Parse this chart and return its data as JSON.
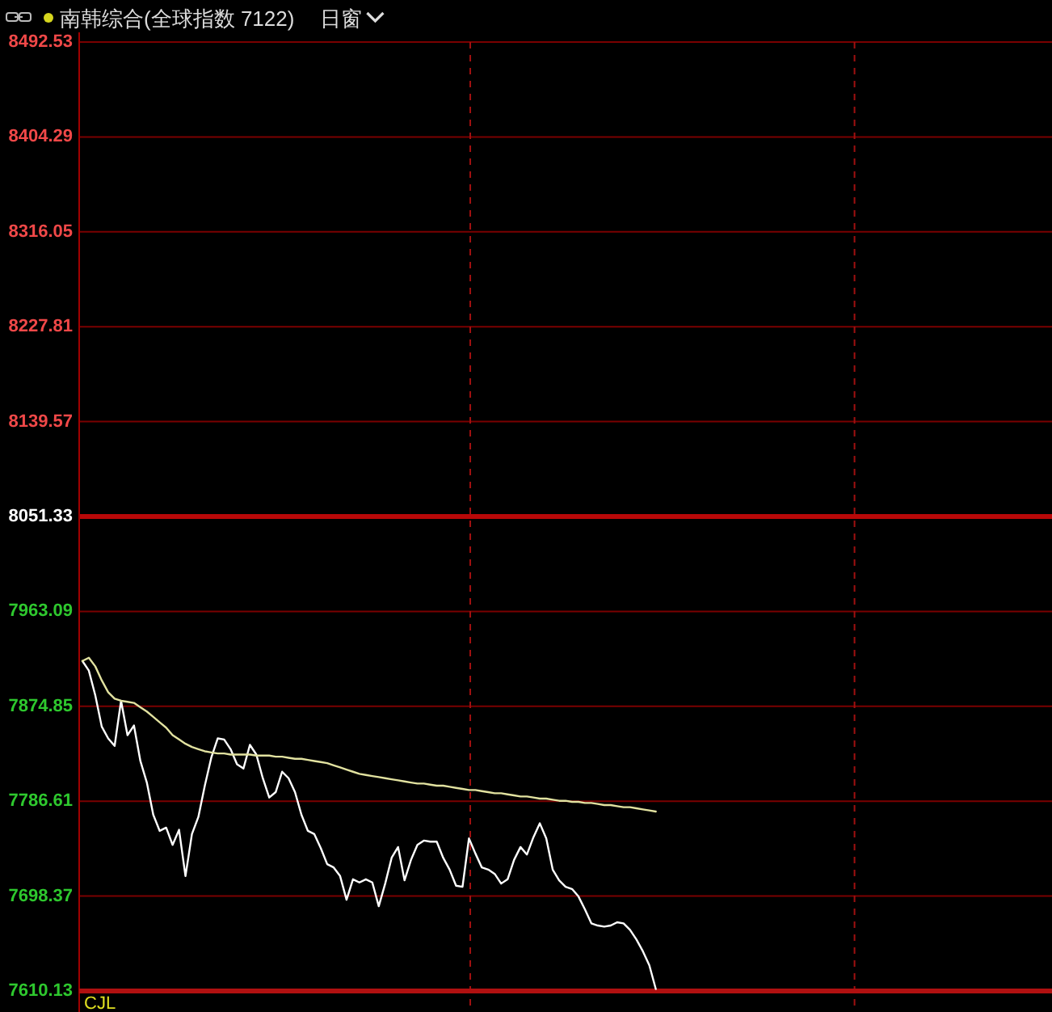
{
  "chart_data": {
    "type": "line",
    "title": "南韩综合(全球指数 7122)",
    "subtitle": "日窗",
    "categories": [
      null,
      null,
      null,
      null,
      null,
      null,
      null,
      null,
      null,
      null,
      null,
      null,
      null,
      null,
      null,
      null,
      null,
      null,
      null,
      null,
      null,
      null,
      null,
      null,
      null,
      null,
      null,
      null,
      null,
      null,
      null,
      null,
      null,
      null,
      null,
      null,
      null,
      null,
      null,
      null,
      null,
      null,
      null,
      null,
      null,
      null,
      null,
      null,
      null,
      null,
      null,
      null,
      null,
      null,
      null,
      null,
      null,
      null,
      null,
      null,
      null,
      null,
      null,
      null,
      null,
      null,
      null,
      null,
      null,
      null,
      null,
      null,
      null,
      null,
      null,
      null,
      null,
      null,
      null,
      null,
      null,
      null,
      null,
      null,
      null,
      null,
      null,
      null,
      null,
      null,
      null,
      null,
      null,
      null,
      null,
      null,
      null,
      null,
      null,
      null,
      null,
      null,
      null,
      null,
      null,
      null,
      null,
      null,
      null,
      null,
      null,
      null,
      null,
      null,
      null,
      null,
      null,
      null,
      null,
      null,
      null,
      null,
      null,
      null,
      null,
      null,
      null,
      null,
      null,
      null,
      null,
      null,
      null,
      null,
      null,
      null,
      null,
      null,
      null,
      null,
      null,
      null,
      null,
      null,
      null,
      null,
      null,
      null,
      null,
      null,
      null
    ],
    "series": [
      {
        "color": "#ffffff",
        "values": [
          7917,
          7908,
          7885,
          7856,
          7845,
          7838,
          7880,
          7848,
          7857,
          7824,
          7804,
          7774,
          7759,
          7762,
          7746,
          7760,
          7717,
          7756,
          7772,
          7801,
          7827,
          7845,
          7844,
          7835,
          7821,
          7817,
          7839,
          7830,
          7808,
          7790,
          7795,
          7814,
          7808,
          7795,
          7774,
          7759,
          7756,
          7743,
          7728,
          7725,
          7717,
          7695,
          7714,
          7711,
          7714,
          7711,
          7689,
          7710,
          7734,
          7744,
          7713,
          7732,
          7746,
          7750,
          7749,
          7749,
          7734,
          7723,
          7708,
          7707,
          7752,
          7738,
          7725,
          7723,
          7719,
          7710,
          7714,
          7732,
          7744,
          7737,
          7753,
          7766,
          7752,
          7723,
          7713,
          7707,
          7705,
          7698,
          7686,
          7673,
          7671,
          7670,
          7671,
          7674,
          7673,
          7667,
          7658,
          7647,
          7634,
          7612,
          null,
          null,
          null,
          null,
          null,
          null,
          null,
          null,
          null,
          null,
          null,
          null,
          null,
          null,
          null,
          null,
          null,
          null,
          null,
          null,
          null,
          null,
          null,
          null,
          null,
          null,
          null,
          null,
          null,
          null,
          null,
          null,
          null,
          null,
          null,
          null,
          null,
          null,
          null,
          null,
          null,
          null,
          null,
          null,
          null,
          null,
          null,
          null,
          null,
          null,
          null,
          null,
          null,
          null,
          null,
          null,
          null,
          null,
          null,
          null,
          null
        ]
      },
      {
        "color": "#e2e2a0",
        "values": [
          7917,
          7920,
          7912,
          7899,
          7888,
          7882,
          7880,
          7879,
          7878,
          7874,
          7870,
          7865,
          7860,
          7855,
          7848,
          7844,
          7840,
          7837,
          7835,
          7833,
          7832,
          7831,
          7831,
          7830,
          7830,
          7830,
          7830,
          7829,
          7829,
          7829,
          7828,
          7828,
          7827,
          7826,
          7826,
          7825,
          7824,
          7823,
          7822,
          7820,
          7818,
          7816,
          7814,
          7812,
          7811,
          7810,
          7809,
          7808,
          7807,
          7806,
          7805,
          7804,
          7803,
          7803,
          7802,
          7801,
          7801,
          7800,
          7799,
          7798,
          7797,
          7797,
          7796,
          7795,
          7794,
          7794,
          7793,
          7792,
          7791,
          7791,
          7790,
          7789,
          7789,
          7788,
          7787,
          7787,
          7786,
          7786,
          7785,
          7785,
          7784,
          7783,
          7783,
          7782,
          7781,
          7781,
          7780,
          7779,
          7778,
          7777,
          null,
          null,
          null,
          null,
          null,
          null,
          null,
          null,
          null,
          null,
          null,
          null,
          null,
          null,
          null,
          null,
          null,
          null,
          null,
          null,
          null,
          null,
          null,
          null,
          null,
          null,
          null,
          null,
          null,
          null,
          null,
          null,
          null,
          null,
          null,
          null,
          null,
          null,
          null,
          null,
          null,
          null,
          null,
          null,
          null,
          null,
          null,
          null,
          null,
          null,
          null,
          null,
          null,
          null,
          null,
          null,
          null,
          null,
          null,
          null,
          null
        ]
      }
    ],
    "ylim": [
      7610.13,
      8492.53
    ],
    "yticks": [
      7610.13,
      7698.37,
      7786.61,
      7874.85,
      7963.09,
      8051.33,
      8139.57,
      8227.81,
      8316.05,
      8404.29,
      8492.53
    ],
    "grid": "y",
    "tick_labels": "y",
    "ref_lines": [
      {
        "axis": "y",
        "value": 8051.33,
        "color": "#b80808",
        "line_style": "solid"
      }
    ],
    "annotations": [
      "CJL"
    ]
  }
}
